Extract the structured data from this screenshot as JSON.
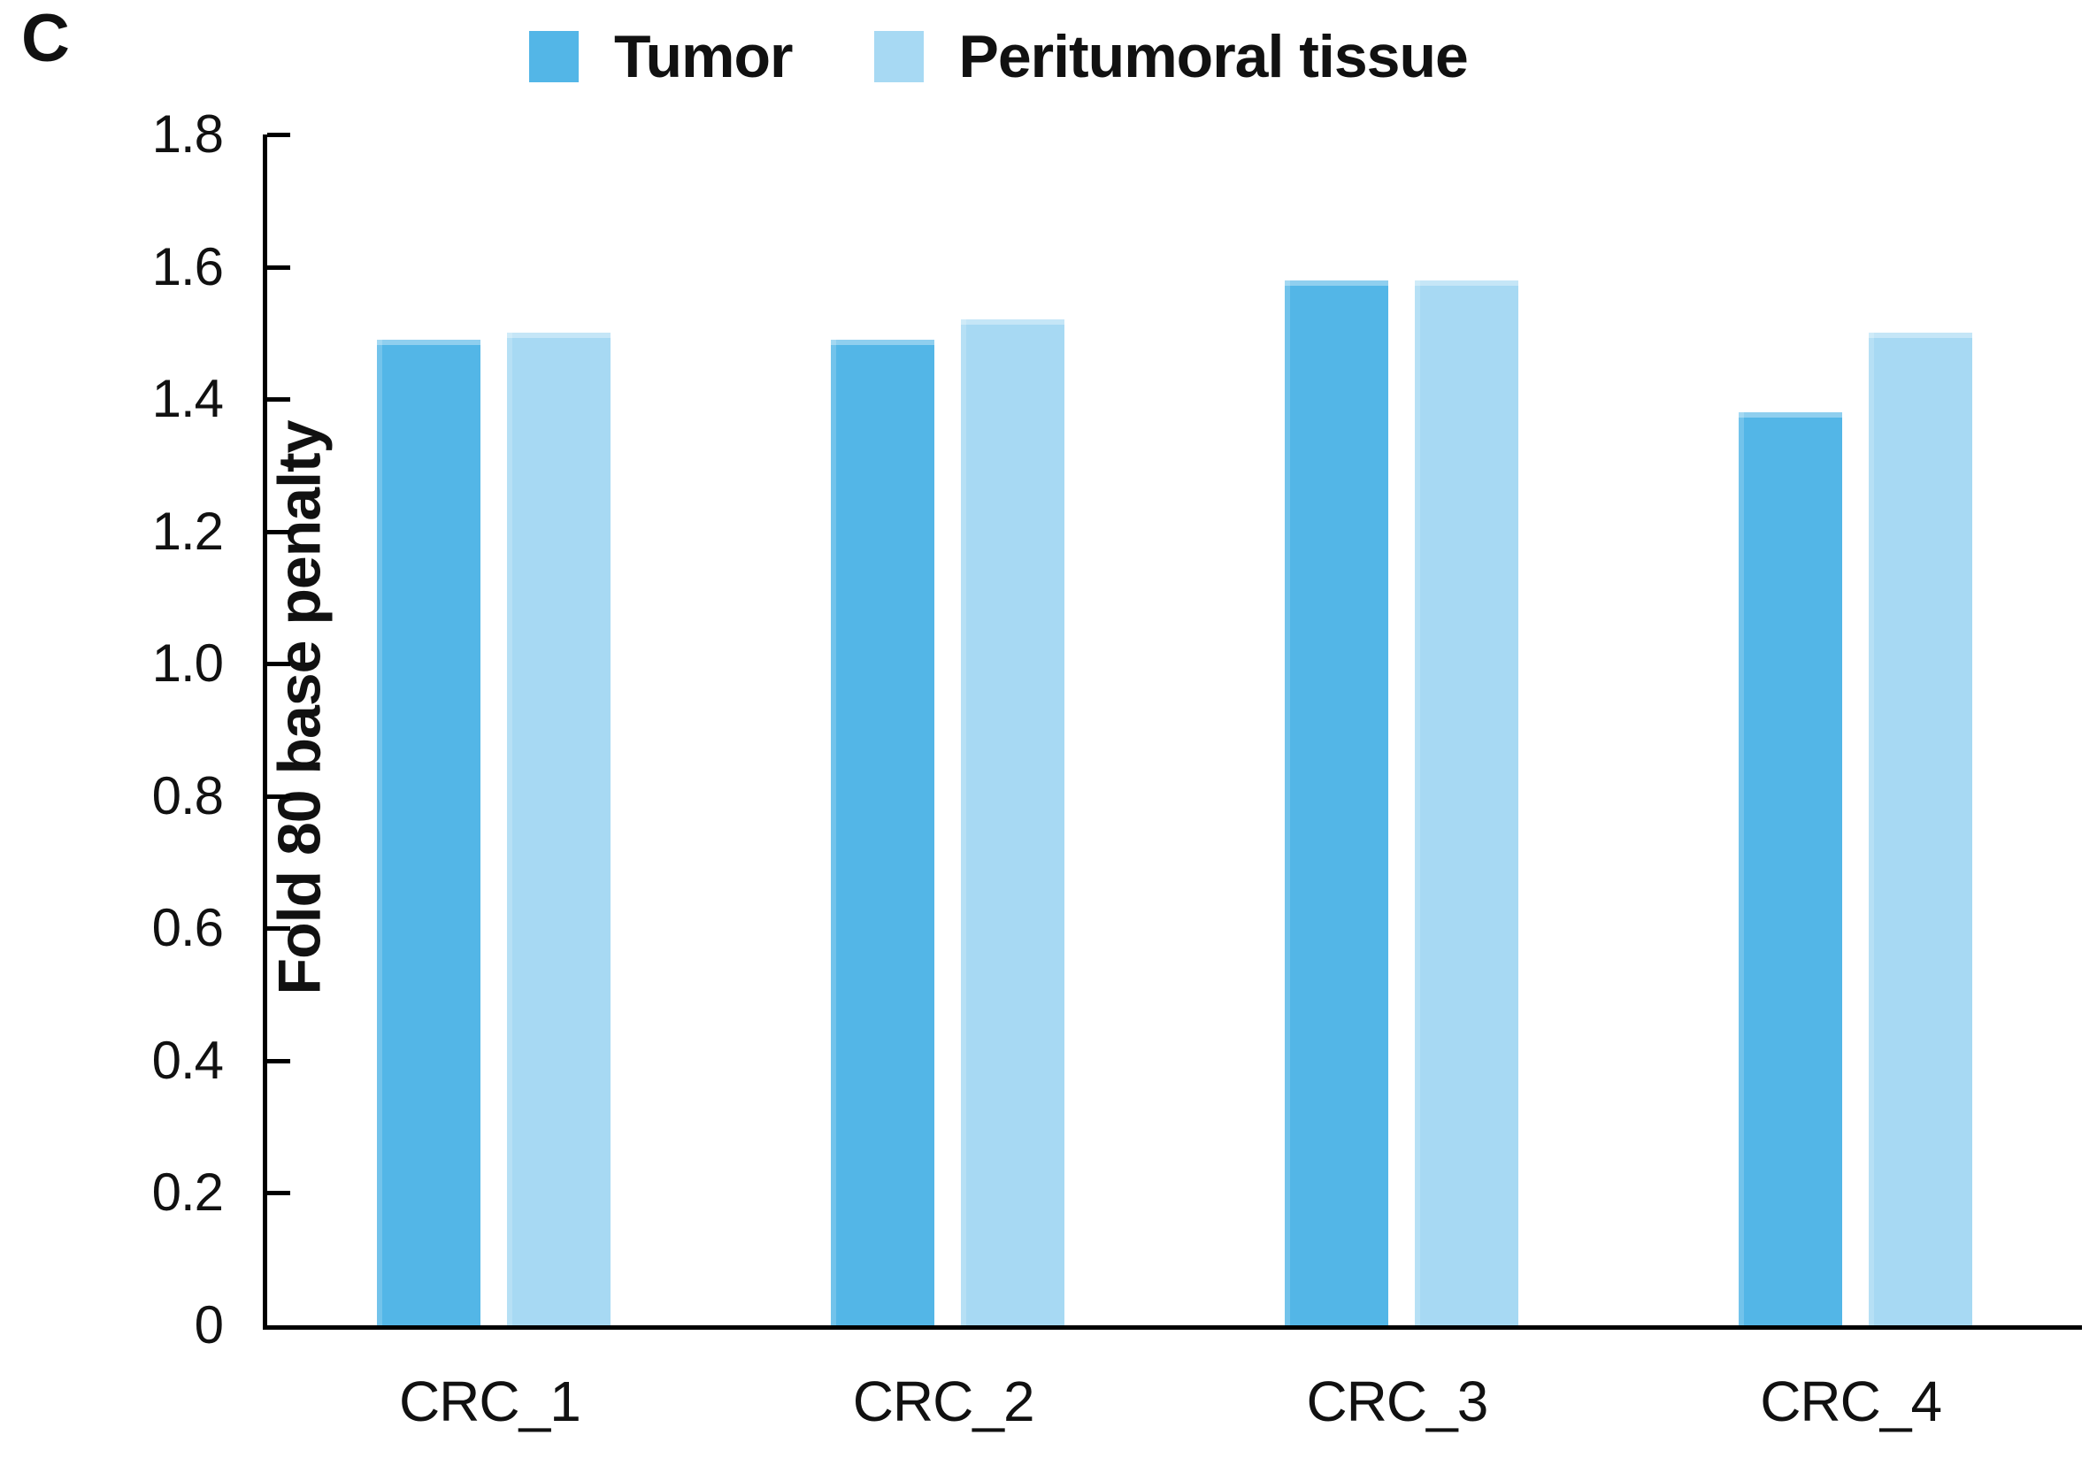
{
  "panel_label": "C",
  "text_color": "#111111",
  "axis_color": "#000000",
  "chart_data": {
    "type": "bar",
    "title": "",
    "xlabel": "",
    "ylabel": "Fold 80 base penalty",
    "categories": [
      "CRC_1",
      "CRC_2",
      "CRC_3",
      "CRC_4"
    ],
    "series": [
      {
        "name": "Tumor",
        "color": "#53B6E7",
        "values": [
          1.49,
          1.49,
          1.58,
          1.38
        ]
      },
      {
        "name": "Peritumoral tissue",
        "color": "#A7D9F3",
        "values": [
          1.5,
          1.52,
          1.58,
          1.5
        ]
      }
    ],
    "ylim": [
      0,
      1.8
    ],
    "ytick_step": 0.2,
    "ytick_labels": [
      "0",
      "0.2",
      "0.4",
      "0.6",
      "0.8",
      "1.0",
      "1.2",
      "1.4",
      "1.6",
      "1.8"
    ],
    "grid": false,
    "legend_position": "top"
  }
}
